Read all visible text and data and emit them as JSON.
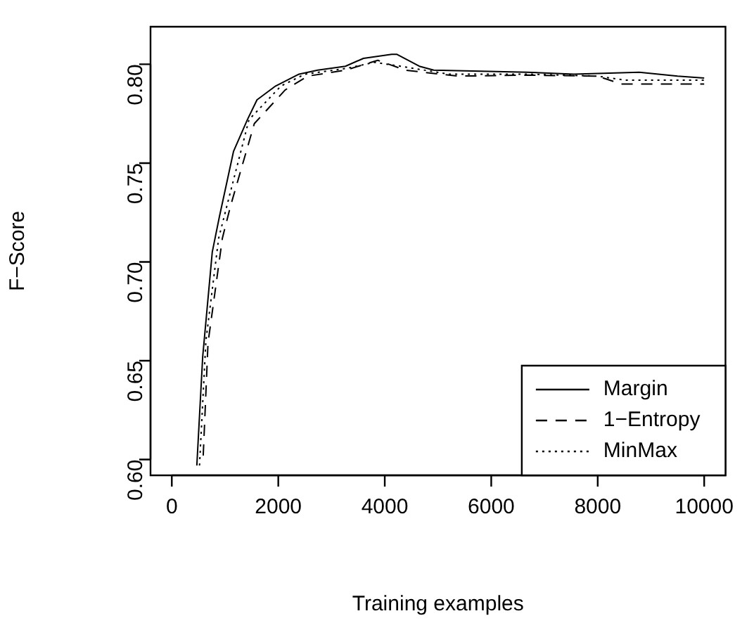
{
  "chart_data": {
    "type": "line",
    "xlabel": "Training examples",
    "ylabel": "F−Score",
    "xlim": [
      -400,
      10400
    ],
    "xticks": [
      0,
      2000,
      4000,
      6000,
      8000,
      10000
    ],
    "ylim": [
      0.592,
      0.819
    ],
    "yticks": [
      {
        "value": 0.6,
        "label": "0.60"
      },
      {
        "value": 0.65,
        "label": "0.65"
      },
      {
        "value": 0.7,
        "label": "0.70"
      },
      {
        "value": 0.75,
        "label": "0.75"
      },
      {
        "value": 0.8,
        "label": "0.80"
      }
    ],
    "grid": false,
    "legend": "bottom right",
    "marker": "none",
    "series": [
      {
        "name": "Margin",
        "color": "#000000",
        "line_style": "solid",
        "x": [
          470,
          580,
          760,
          895,
          1160,
          1420,
          1600,
          1950,
          2390,
          2740,
          3260,
          3600,
          4130,
          4230,
          4650,
          4920,
          6680,
          7550,
          8780,
          9500,
          10000
        ],
        "values": [
          0.597,
          0.652,
          0.705,
          0.723,
          0.756,
          0.772,
          0.782,
          0.789,
          0.795,
          0.797,
          0.799,
          0.803,
          0.805,
          0.805,
          0.799,
          0.797,
          0.796,
          0.795,
          0.796,
          0.794,
          0.793
        ]
      },
      {
        "name": "1−Entropy",
        "color": "#000000",
        "line_style": "dashed",
        "x": [
          590,
          680,
          950,
          1100,
          1550,
          2130,
          2550,
          3260,
          3870,
          4390,
          5370,
          6680,
          8000,
          8440,
          10000
        ],
        "values": [
          0.602,
          0.659,
          0.712,
          0.728,
          0.77,
          0.787,
          0.794,
          0.797,
          0.802,
          0.797,
          0.794,
          0.7945,
          0.794,
          0.79,
          0.79
        ]
      },
      {
        "name": "MinMax",
        "color": "#000000",
        "line_style": "dotted",
        "x": [
          520,
          640,
          880,
          1050,
          1450,
          2050,
          2500,
          3300,
          3800,
          4300,
          5200,
          6700,
          8000,
          8500,
          10000
        ],
        "values": [
          0.597,
          0.66,
          0.712,
          0.73,
          0.772,
          0.789,
          0.795,
          0.798,
          0.801,
          0.799,
          0.795,
          0.795,
          0.794,
          0.792,
          0.792
        ]
      }
    ]
  }
}
